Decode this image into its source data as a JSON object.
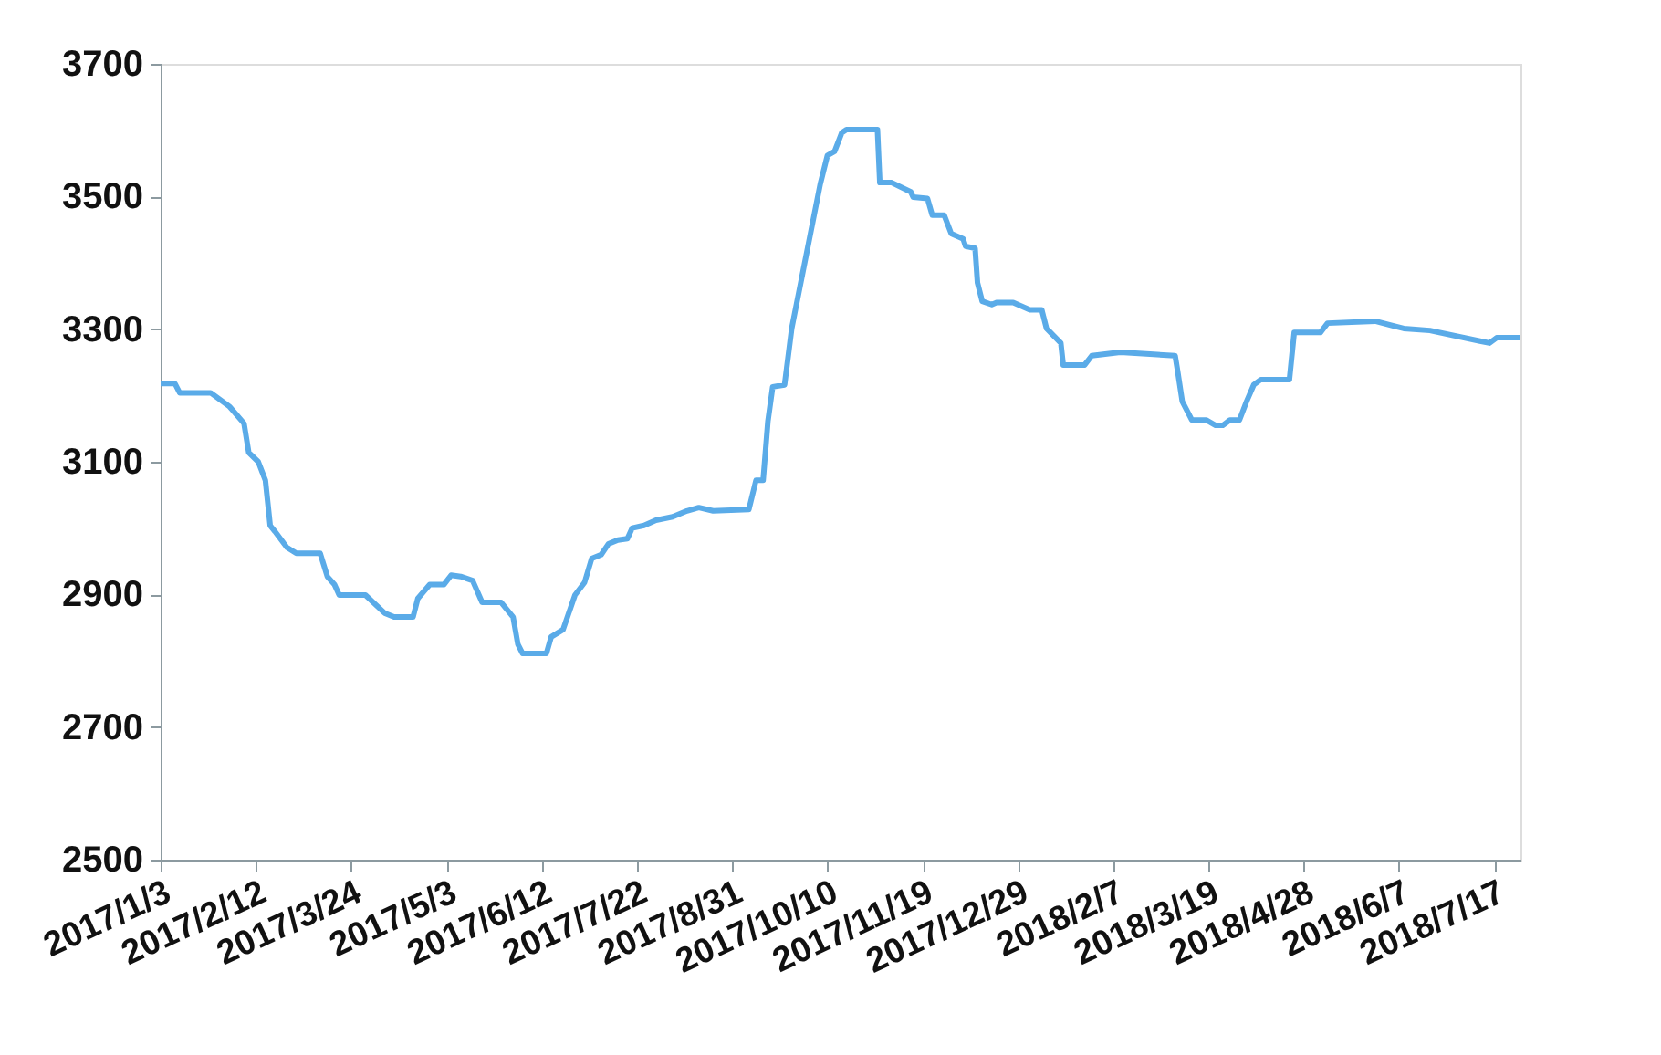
{
  "chart_data": {
    "type": "line",
    "x": [
      "2017-01-03",
      "2017-01-09",
      "2017-01-11",
      "2017-01-24",
      "2017-02-01",
      "2017-02-07",
      "2017-02-09",
      "2017-02-13",
      "2017-02-16",
      "2017-02-18",
      "2017-02-20",
      "2017-02-25",
      "2017-03-01",
      "2017-03-11",
      "2017-03-14",
      "2017-03-17",
      "2017-03-19",
      "2017-03-30",
      "2017-04-07",
      "2017-04-11",
      "2017-04-19",
      "2017-04-21",
      "2017-04-26",
      "2017-05-02",
      "2017-05-05",
      "2017-05-09",
      "2017-05-14",
      "2017-05-18",
      "2017-05-26",
      "2017-05-31",
      "2017-06-02",
      "2017-06-04",
      "2017-06-14",
      "2017-06-16",
      "2017-06-21",
      "2017-06-26",
      "2017-06-30",
      "2017-07-03",
      "2017-07-07",
      "2017-07-10",
      "2017-07-14",
      "2017-07-18",
      "2017-07-20",
      "2017-07-25",
      "2017-07-30",
      "2017-08-06",
      "2017-08-12",
      "2017-08-17",
      "2017-08-23",
      "2017-09-07",
      "2017-09-10",
      "2017-09-13",
      "2017-09-15",
      "2017-09-17",
      "2017-09-22",
      "2017-09-25",
      "2017-10-07",
      "2017-10-10",
      "2017-10-13",
      "2017-10-16",
      "2017-10-18",
      "2017-10-31",
      "2017-11-01",
      "2017-11-06",
      "2017-11-14",
      "2017-11-15",
      "2017-11-21",
      "2017-11-23",
      "2017-11-28",
      "2017-12-01",
      "2017-12-06",
      "2017-12-07",
      "2017-12-11",
      "2017-12-12",
      "2017-12-14",
      "2017-12-18",
      "2017-12-20",
      "2017-12-27",
      "2018-01-03",
      "2018-01-08",
      "2018-01-10",
      "2018-01-16",
      "2018-01-17",
      "2018-01-23",
      "2018-01-26",
      "2018-01-29",
      "2018-02-10",
      "2018-02-24",
      "2018-03-05",
      "2018-03-06",
      "2018-03-08",
      "2018-03-12",
      "2018-03-18",
      "2018-03-22",
      "2018-03-25",
      "2018-03-28",
      "2018-04-01",
      "2018-04-04",
      "2018-04-07",
      "2018-04-10",
      "2018-04-22",
      "2018-04-24",
      "2018-05-05",
      "2018-05-08",
      "2018-05-28",
      "2018-06-09",
      "2018-06-20",
      "2018-07-11",
      "2018-07-15",
      "2018-07-18",
      "2018-07-28"
    ],
    "series": [
      {
        "color": "#5aabe8",
        "values": [
          3218,
          3218,
          3204,
          3204,
          3183,
          3158,
          3114,
          3100,
          3072,
          3004,
          2995,
          2971,
          2962,
          2962,
          2927,
          2915,
          2899,
          2899,
          2872,
          2866,
          2866,
          2894,
          2915,
          2915,
          2929,
          2927,
          2921,
          2888,
          2888,
          2866,
          2825,
          2811,
          2811,
          2836,
          2847,
          2899,
          2918,
          2954,
          2960,
          2976,
          2982,
          2984,
          3000,
          3004,
          3012,
          3017,
          3026,
          3031,
          3026,
          3028,
          3072,
          3072,
          3161,
          3213,
          3216,
          3301,
          3519,
          3562,
          3568,
          3596,
          3601,
          3601,
          3521,
          3521,
          3507,
          3499,
          3497,
          3472,
          3472,
          3444,
          3436,
          3425,
          3422,
          3370,
          3342,
          3337,
          3340,
          3340,
          3329,
          3329,
          3301,
          3279,
          3246,
          3246,
          3246,
          3260,
          3265,
          3262,
          3260,
          3238,
          3191,
          3163,
          3163,
          3155,
          3155,
          3163,
          3163,
          3191,
          3216,
          3224,
          3224,
          3295,
          3295,
          3309,
          3312,
          3301,
          3298,
          3282,
          3279,
          3287,
          3287
        ]
      }
    ],
    "xlim": [
      "2017-01-03",
      "2018-07-28"
    ],
    "xticks": [
      {
        "value": "2017-01-03",
        "label": "2017/1/3"
      },
      {
        "value": "2017-02-12",
        "label": "2017/2/12"
      },
      {
        "value": "2017-03-24",
        "label": "2017/3/24"
      },
      {
        "value": "2017-05-03",
        "label": "2017/5/3"
      },
      {
        "value": "2017-06-12",
        "label": "2017/6/12"
      },
      {
        "value": "2017-07-22",
        "label": "2017/7/22"
      },
      {
        "value": "2017-08-31",
        "label": "2017/8/31"
      },
      {
        "value": "2017-10-10",
        "label": "2017/10/10"
      },
      {
        "value": "2017-11-19",
        "label": "2017/11/19"
      },
      {
        "value": "2017-12-29",
        "label": "2017/12/29"
      },
      {
        "value": "2018-02-07",
        "label": "2018/2/7"
      },
      {
        "value": "2018-03-19",
        "label": "2018/3/19"
      },
      {
        "value": "2018-04-28",
        "label": "2018/4/28"
      },
      {
        "value": "2018-06-07",
        "label": "2018/6/7"
      },
      {
        "value": "2018-07-17",
        "label": "2018/7/17"
      }
    ],
    "ylim": [
      2500,
      3700
    ],
    "yticks": [
      2500,
      2700,
      2900,
      3100,
      3300,
      3500,
      3700
    ],
    "grid": false,
    "legend": false,
    "marker": "none",
    "line_style": "solid"
  }
}
